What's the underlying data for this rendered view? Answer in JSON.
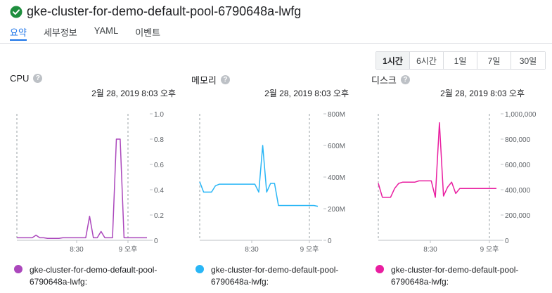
{
  "page": {
    "title": "gke-cluster-for-demo-default-pool-6790648a-lwfg"
  },
  "tabs": [
    "요약",
    "세부정보",
    "YAML",
    "이벤트"
  ],
  "time_ranges": [
    "1시간",
    "6시간",
    "1일",
    "7일",
    "30일"
  ],
  "selected_range": "1시간",
  "panels": [
    {
      "title": "CPU",
      "timestamp": "2월 28, 2019 8:03 오후",
      "legend": "gke-cluster-for-demo-default-pool-6790648a-lwfg:",
      "color": "#ab47bc"
    },
    {
      "title": "메모리",
      "timestamp": "2월 28, 2019 8:03 오후",
      "legend": "gke-cluster-for-demo-default-pool-6790648a-lwfg:",
      "color": "#29b6f6"
    },
    {
      "title": "디스크",
      "timestamp": "2월 28, 2019 8:03 오후",
      "legend": "gke-cluster-for-demo-default-pool-6790648a-lwfg:",
      "color": "#e91ea0"
    }
  ],
  "chart_data": [
    {
      "type": "line",
      "title": "CPU",
      "x_tick_labels": [
        "8:30",
        "9 오후"
      ],
      "y_tick_labels": [
        "0",
        "0.2",
        "0.4",
        "0.6",
        "0.8",
        "1.0"
      ],
      "ylim": [
        0,
        1.0
      ],
      "series": [
        {
          "name": "gke-cluster-for-demo-default-pool-6790648a-lwfg:",
          "values": [
            0.02,
            0.02,
            0.02,
            0.02,
            0.02,
            0.04,
            0.02,
            0.02,
            0.015,
            0.015,
            0.015,
            0.015,
            0.02,
            0.02,
            0.02,
            0.02,
            0.02,
            0.02,
            0.02,
            0.19,
            0.02,
            0.02,
            0.07,
            0.02,
            0.02,
            0.02,
            0.8,
            0.8,
            0.02,
            0.02,
            0.02,
            0.02,
            0.02,
            0.02,
            0.02
          ]
        }
      ]
    },
    {
      "type": "line",
      "title": "메모리",
      "x_tick_labels": [
        "8:30",
        "9 오후"
      ],
      "y_tick_labels": [
        "0",
        "200M",
        "400M",
        "600M",
        "800M"
      ],
      "ylim": [
        0,
        800
      ],
      "series": [
        {
          "name": "gke-cluster-for-demo-default-pool-6790648a-lwfg:",
          "values": [
            370,
            305,
            305,
            305,
            345,
            355,
            355,
            355,
            355,
            355,
            355,
            355,
            355,
            355,
            355,
            305,
            600,
            305,
            360,
            360,
            220,
            220,
            220,
            220,
            220,
            220,
            220,
            220,
            220,
            220,
            215
          ]
        }
      ]
    },
    {
      "type": "line",
      "title": "디스크",
      "x_tick_labels": [
        "8:30",
        "9 오후"
      ],
      "y_tick_labels": [
        "0",
        "200,000",
        "400,000",
        "600,000",
        "800,000",
        "1,000,000"
      ],
      "ylim": [
        0,
        1000000
      ],
      "series": [
        {
          "name": "gke-cluster-for-demo-default-pool-6790648a-lwfg:",
          "values": [
            450000,
            340000,
            340000,
            340000,
            410000,
            450000,
            460000,
            460000,
            460000,
            460000,
            470000,
            470000,
            470000,
            470000,
            340000,
            930000,
            350000,
            420000,
            460000,
            370000,
            410000,
            410000,
            410000,
            410000,
            410000,
            410000,
            410000,
            410000,
            410000,
            410000
          ]
        }
      ]
    }
  ]
}
